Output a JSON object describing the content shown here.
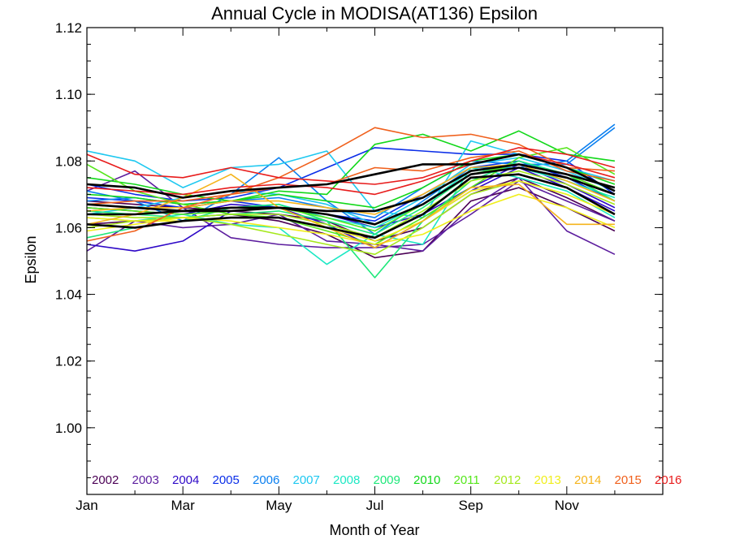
{
  "chart_data": {
    "type": "line",
    "title": "Annual Cycle in MODISA(AT136) Epsilon",
    "xlabel": "Month of Year",
    "ylabel": "Epsilon",
    "xlim": [
      1,
      13
    ],
    "ylim": [
      0.98,
      1.12
    ],
    "x": [
      1,
      2,
      3,
      4,
      5,
      6,
      7,
      8,
      9,
      10,
      11,
      12
    ],
    "x_ticks": [
      {
        "value": 1,
        "label": "Jan"
      },
      {
        "value": 3,
        "label": "Mar"
      },
      {
        "value": 5,
        "label": "May"
      },
      {
        "value": 7,
        "label": "Jul"
      },
      {
        "value": 9,
        "label": "Sep"
      },
      {
        "value": 11,
        "label": "Nov"
      }
    ],
    "y_ticks": [
      {
        "value": 1.0,
        "label": "1.00"
      },
      {
        "value": 1.02,
        "label": "1.02"
      },
      {
        "value": 1.04,
        "label": "1.04"
      },
      {
        "value": 1.06,
        "label": "1.06"
      },
      {
        "value": 1.08,
        "label": "1.08"
      },
      {
        "value": 1.1,
        "label": "1.10"
      },
      {
        "value": 1.12,
        "label": "1.12"
      }
    ],
    "grid": false,
    "legend_position": "bottom",
    "series": [
      {
        "name": "2002",
        "color": "#4b0055",
        "values": [
          1.061,
          1.062,
          1.063,
          1.064,
          1.062,
          1.058,
          1.051,
          1.053,
          1.068,
          1.072,
          1.066,
          1.059
        ]
      },
      {
        "name": "2002",
        "color": "#4b0055",
        "values": [
          1.068,
          1.067,
          1.066,
          1.065,
          1.064,
          1.062,
          1.056,
          1.06,
          1.07,
          1.075,
          1.069,
          1.062
        ]
      },
      {
        "name": "2003",
        "color": "#5c1d9e",
        "values": [
          1.053,
          1.062,
          1.06,
          1.061,
          1.064,
          1.056,
          1.055,
          1.053,
          1.066,
          1.075,
          1.059,
          1.052
        ]
      },
      {
        "name": "2003",
        "color": "#5c1d9e",
        "values": [
          1.071,
          1.077,
          1.066,
          1.057,
          1.055,
          1.054,
          1.054,
          1.055,
          1.064,
          1.074,
          1.068,
          1.062
        ]
      },
      {
        "name": "2004",
        "color": "#2e08c7",
        "values": [
          1.055,
          1.053,
          1.056,
          1.065,
          1.066,
          1.061,
          1.054,
          1.062,
          1.071,
          1.078,
          1.072,
          1.065
        ]
      },
      {
        "name": "2004",
        "color": "#2e08c7",
        "values": [
          1.066,
          1.065,
          1.064,
          1.067,
          1.066,
          1.064,
          1.06,
          1.064,
          1.072,
          1.079,
          1.073,
          1.066
        ]
      },
      {
        "name": "2005",
        "color": "#0b2ee8",
        "values": [
          1.073,
          1.07,
          1.068,
          1.069,
          1.072,
          1.078,
          1.084,
          1.083,
          1.082,
          1.082,
          1.08,
          1.07
        ]
      },
      {
        "name": "2005",
        "color": "#0b2ee8",
        "values": [
          1.069,
          1.068,
          1.066,
          1.068,
          1.066,
          1.064,
          1.062,
          1.07,
          1.078,
          1.08,
          1.075,
          1.068
        ]
      },
      {
        "name": "2006",
        "color": "#0a7ff0",
        "values": [
          1.071,
          1.068,
          1.062,
          1.07,
          1.081,
          1.068,
          1.058,
          1.068,
          1.078,
          1.078,
          1.08,
          1.091
        ]
      },
      {
        "name": "2006",
        "color": "#0a7ff0",
        "values": [
          1.068,
          1.069,
          1.067,
          1.068,
          1.069,
          1.066,
          1.063,
          1.072,
          1.08,
          1.079,
          1.079,
          1.09
        ]
      },
      {
        "name": "2007",
        "color": "#1ec8f0",
        "values": [
          1.083,
          1.08,
          1.072,
          1.078,
          1.079,
          1.083,
          1.065,
          1.063,
          1.086,
          1.082,
          1.078,
          1.074
        ]
      },
      {
        "name": "2007",
        "color": "#1ec8f0",
        "values": [
          1.064,
          1.066,
          1.069,
          1.071,
          1.07,
          1.067,
          1.061,
          1.069,
          1.079,
          1.081,
          1.077,
          1.071
        ]
      },
      {
        "name": "2008",
        "color": "#1ce8c4",
        "values": [
          1.063,
          1.062,
          1.064,
          1.061,
          1.06,
          1.049,
          1.058,
          1.055,
          1.078,
          1.075,
          1.071,
          1.063
        ]
      },
      {
        "name": "2008",
        "color": "#1ce8c4",
        "values": [
          1.067,
          1.066,
          1.065,
          1.066,
          1.067,
          1.063,
          1.06,
          1.067,
          1.077,
          1.078,
          1.074,
          1.069
        ]
      },
      {
        "name": "2009",
        "color": "#1ee87a",
        "values": [
          1.057,
          1.06,
          1.062,
          1.066,
          1.067,
          1.062,
          1.045,
          1.062,
          1.074,
          1.08,
          1.076,
          1.068
        ]
      },
      {
        "name": "2009",
        "color": "#1ee87a",
        "values": [
          1.065,
          1.064,
          1.063,
          1.064,
          1.065,
          1.062,
          1.058,
          1.066,
          1.076,
          1.078,
          1.075,
          1.07
        ]
      },
      {
        "name": "2010",
        "color": "#12d81a",
        "values": [
          1.075,
          1.073,
          1.07,
          1.068,
          1.071,
          1.07,
          1.085,
          1.088,
          1.083,
          1.089,
          1.082,
          1.08
        ]
      },
      {
        "name": "2010",
        "color": "#12d81a",
        "values": [
          1.07,
          1.069,
          1.067,
          1.068,
          1.07,
          1.068,
          1.066,
          1.072,
          1.08,
          1.082,
          1.078,
          1.073
        ]
      },
      {
        "name": "2011",
        "color": "#56e61c",
        "values": [
          1.079,
          1.071,
          1.067,
          1.064,
          1.063,
          1.059,
          1.055,
          1.063,
          1.072,
          1.081,
          1.084,
          1.076
        ]
      },
      {
        "name": "2011",
        "color": "#56e61c",
        "values": [
          1.066,
          1.065,
          1.064,
          1.065,
          1.066,
          1.063,
          1.059,
          1.067,
          1.076,
          1.079,
          1.076,
          1.07
        ]
      },
      {
        "name": "2012",
        "color": "#a5e81c",
        "values": [
          1.06,
          1.062,
          1.063,
          1.061,
          1.058,
          1.055,
          1.052,
          1.06,
          1.07,
          1.074,
          1.07,
          1.064
        ]
      },
      {
        "name": "2012",
        "color": "#a5e81c",
        "values": [
          1.064,
          1.063,
          1.063,
          1.064,
          1.064,
          1.061,
          1.057,
          1.065,
          1.074,
          1.077,
          1.073,
          1.067
        ]
      },
      {
        "name": "2013",
        "color": "#f0ee1c",
        "values": [
          1.059,
          1.061,
          1.063,
          1.062,
          1.06,
          1.058,
          1.055,
          1.058,
          1.065,
          1.07,
          1.066,
          1.06
        ]
      },
      {
        "name": "2013",
        "color": "#f0ee1c",
        "values": [
          1.063,
          1.062,
          1.062,
          1.063,
          1.063,
          1.06,
          1.056,
          1.062,
          1.071,
          1.074,
          1.07,
          1.064
        ]
      },
      {
        "name": "2014",
        "color": "#f5b41c",
        "values": [
          1.061,
          1.064,
          1.069,
          1.076,
          1.066,
          1.06,
          1.054,
          1.062,
          1.072,
          1.073,
          1.061,
          1.061
        ]
      },
      {
        "name": "2014",
        "color": "#f5b41c",
        "values": [
          1.065,
          1.066,
          1.066,
          1.068,
          1.068,
          1.066,
          1.064,
          1.07,
          1.078,
          1.079,
          1.074,
          1.068
        ]
      },
      {
        "name": "2015",
        "color": "#f0601c",
        "values": [
          1.056,
          1.059,
          1.066,
          1.07,
          1.075,
          1.082,
          1.09,
          1.087,
          1.088,
          1.085,
          1.078,
          1.077
        ]
      },
      {
        "name": "2015",
        "color": "#f0601c",
        "values": [
          1.067,
          1.068,
          1.068,
          1.07,
          1.072,
          1.073,
          1.078,
          1.077,
          1.081,
          1.083,
          1.077,
          1.074
        ]
      },
      {
        "name": "2016",
        "color": "#e81c1c",
        "values": [
          1.082,
          1.076,
          1.075,
          1.078,
          1.075,
          1.074,
          1.073,
          1.075,
          1.08,
          1.084,
          1.082,
          1.078
        ]
      },
      {
        "name": "2016",
        "color": "#e81c1c",
        "values": [
          1.072,
          1.071,
          1.07,
          1.072,
          1.073,
          1.072,
          1.07,
          1.074,
          1.079,
          1.082,
          1.079,
          1.075
        ]
      },
      {
        "name": "",
        "color": "#000000",
        "values": [
          1.067,
          1.066,
          1.065,
          1.066,
          1.066,
          1.064,
          1.061,
          1.067,
          1.076,
          1.078,
          1.075,
          1.07
        ]
      },
      {
        "name": "",
        "color": "#000000",
        "values": [
          1.073,
          1.072,
          1.069,
          1.071,
          1.072,
          1.073,
          1.076,
          1.079,
          1.079,
          1.082,
          1.078,
          1.071
        ]
      },
      {
        "name": "",
        "color": "#000000",
        "values": [
          1.061,
          1.06,
          1.062,
          1.063,
          1.063,
          1.06,
          1.057,
          1.064,
          1.075,
          1.076,
          1.072,
          1.064
        ]
      },
      {
        "name": "",
        "color": "#000000",
        "values": [
          1.064,
          1.064,
          1.065,
          1.065,
          1.066,
          1.065,
          1.065,
          1.069,
          1.077,
          1.079,
          1.076,
          1.072
        ]
      }
    ],
    "legend": [
      {
        "label": "2002",
        "color": "#4b0055"
      },
      {
        "label": "2003",
        "color": "#5c1d9e"
      },
      {
        "label": "2004",
        "color": "#2e08c7"
      },
      {
        "label": "2005",
        "color": "#0b2ee8"
      },
      {
        "label": "2006",
        "color": "#0a7ff0"
      },
      {
        "label": "2007",
        "color": "#1ec8f0"
      },
      {
        "label": "2008",
        "color": "#1ce8c4"
      },
      {
        "label": "2009",
        "color": "#1ee87a"
      },
      {
        "label": "2010",
        "color": "#12d81a"
      },
      {
        "label": "2011",
        "color": "#56e61c"
      },
      {
        "label": "2012",
        "color": "#a5e81c"
      },
      {
        "label": "2013",
        "color": "#f0ee1c"
      },
      {
        "label": "2014",
        "color": "#f5b41c"
      },
      {
        "label": "2015",
        "color": "#f0601c"
      },
      {
        "label": "2016",
        "color": "#e81c1c"
      }
    ]
  }
}
